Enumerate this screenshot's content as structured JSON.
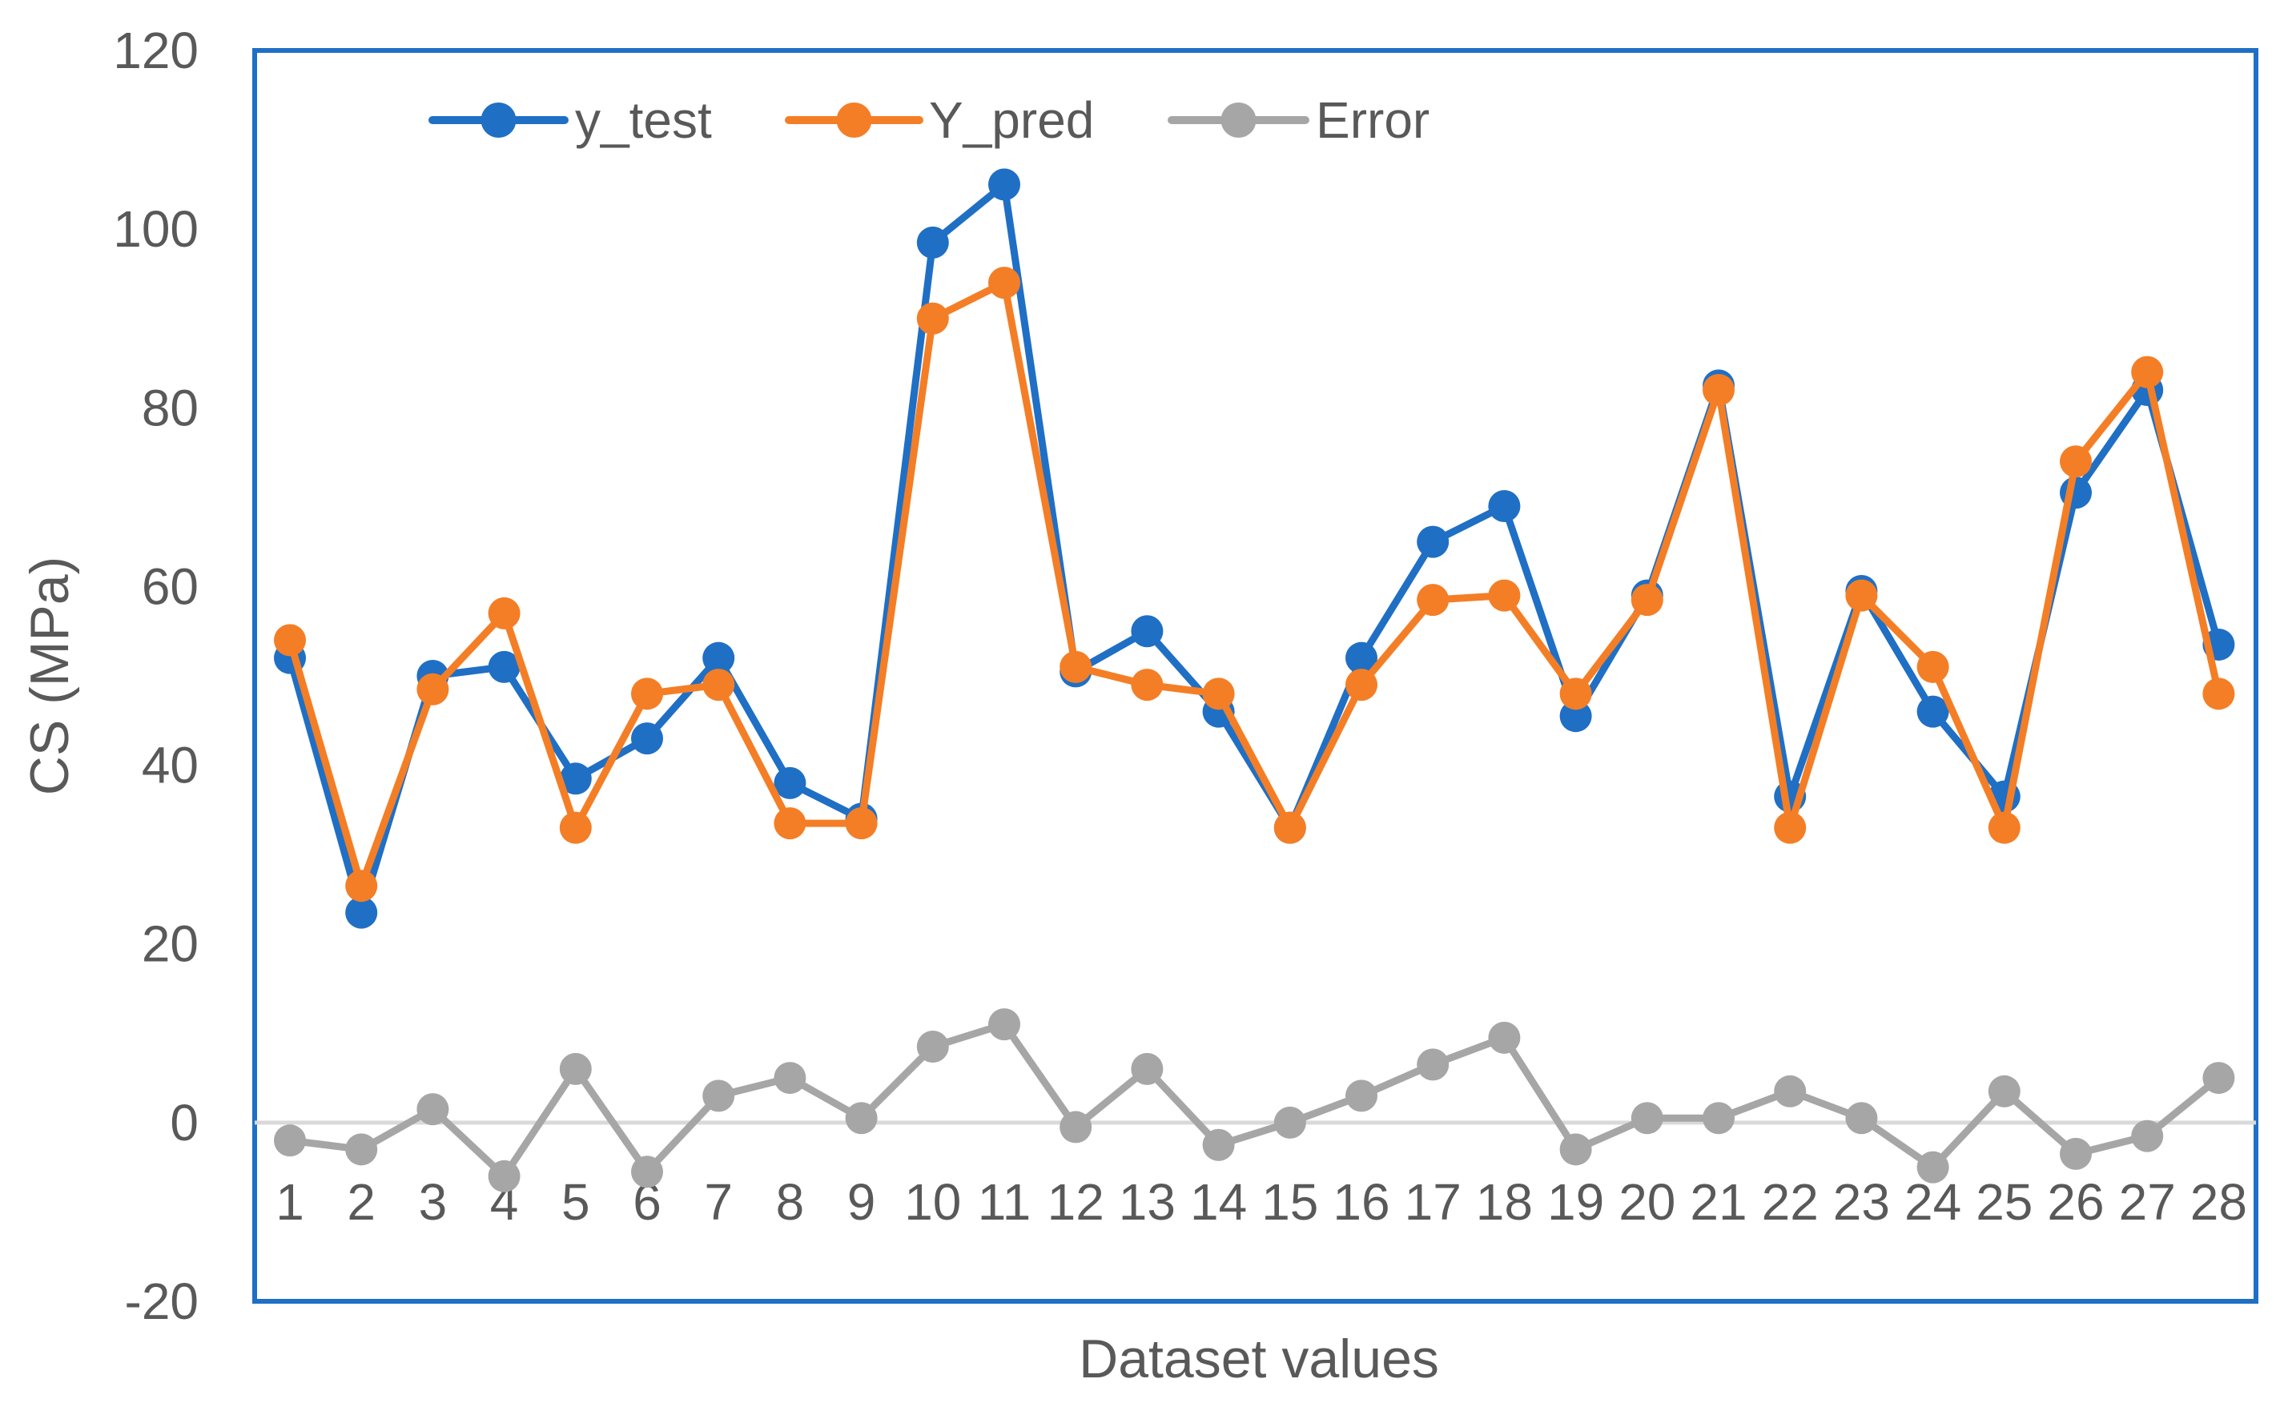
{
  "chart_data": {
    "type": "line",
    "xlabel": "Dataset values",
    "ylabel": "CS  (MPa)",
    "ylim": [
      -20,
      120
    ],
    "ystep": 20,
    "grid": false,
    "legend": "top-left",
    "categories": [
      "1",
      "2",
      "3",
      "4",
      "5",
      "6",
      "7",
      "8",
      "9",
      "10",
      "11",
      "12",
      "13",
      "14",
      "15",
      "16",
      "17",
      "18",
      "19",
      "20",
      "21",
      "22",
      "23",
      "24",
      "25",
      "26",
      "27",
      "28"
    ],
    "series": [
      {
        "name": "y_test",
        "color": "#1F6FC5",
        "values": [
          52,
          23.5,
          50,
          51,
          38.5,
          43,
          52,
          38,
          34,
          98.5,
          105,
          50.5,
          55,
          46,
          33,
          52,
          65,
          69,
          45.5,
          59,
          82.5,
          36.5,
          59.5,
          46,
          36.5,
          70.5,
          82,
          53.5
        ]
      },
      {
        "name": "Y_pred",
        "color": "#F47E26",
        "values": [
          54,
          26.5,
          48.5,
          57,
          33,
          48,
          49,
          33.5,
          33.5,
          90,
          94,
          51,
          49,
          48,
          33,
          49,
          58.5,
          59,
          48,
          58.5,
          82,
          33,
          59,
          51,
          33,
          74,
          84,
          48
        ]
      },
      {
        "name": "Error",
        "color": "#A6A6A6",
        "values": [
          -2,
          -3,
          1.5,
          -6,
          6,
          -5.5,
          3,
          5,
          0.5,
          8.5,
          11,
          -0.5,
          6,
          -2.5,
          0,
          3,
          6.5,
          9.5,
          -3,
          0.5,
          0.5,
          3.5,
          0.5,
          -5,
          3.5,
          -3.5,
          -1.5,
          5
        ]
      }
    ]
  }
}
